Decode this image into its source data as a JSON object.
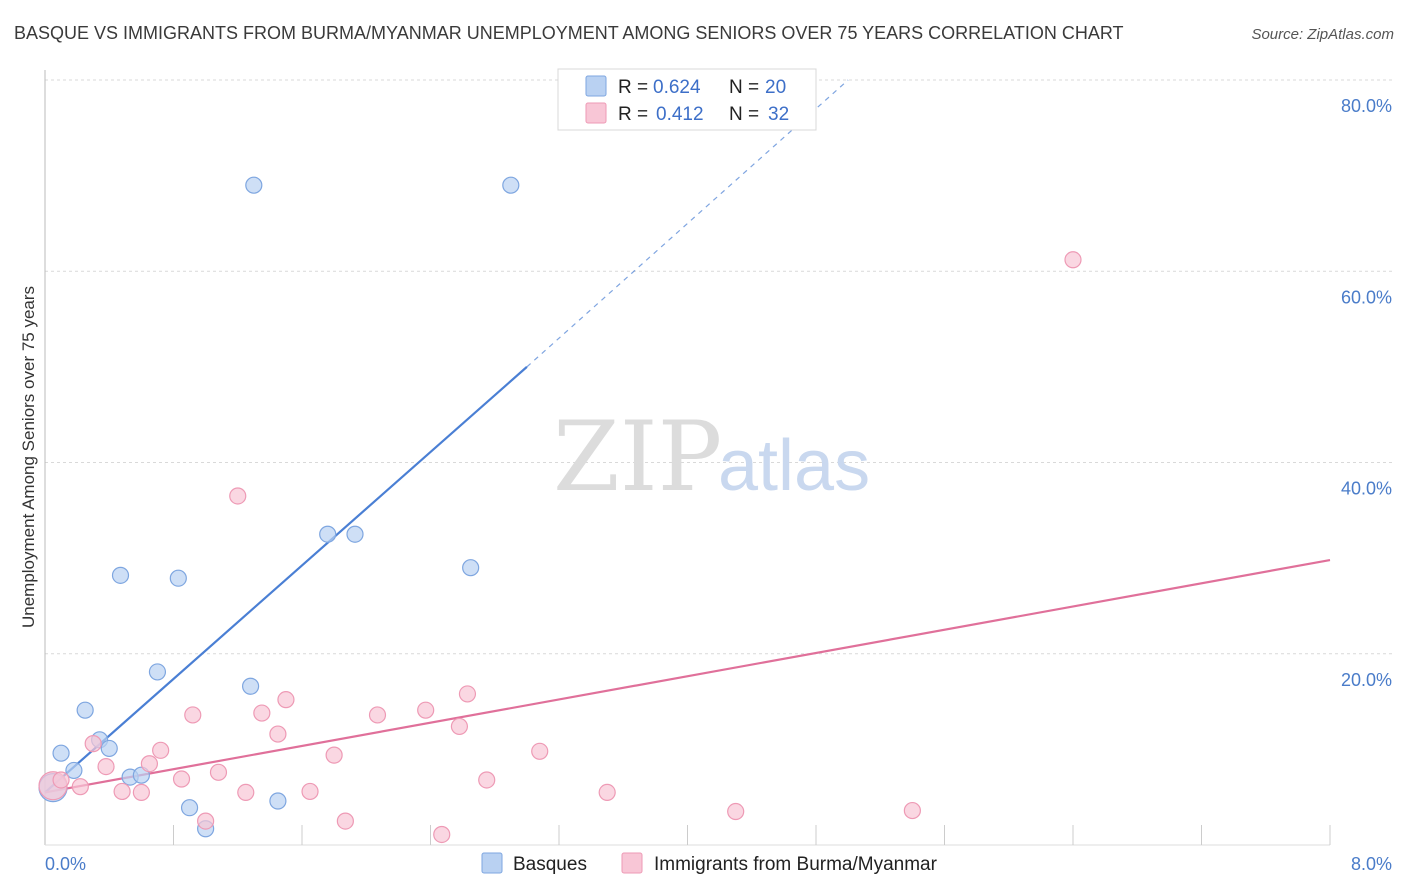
{
  "title": "BASQUE VS IMMIGRANTS FROM BURMA/MYANMAR UNEMPLOYMENT AMONG SENIORS OVER 75 YEARS CORRELATION CHART",
  "source": "Source: ZipAtlas.com",
  "watermark": {
    "zip": "ZIP",
    "atlas": "atlas"
  },
  "legend": {
    "rows": [
      {
        "r_label": "R =",
        "r_value": "0.624",
        "n_label": "N =",
        "n_value": "20",
        "color": "#b9d1f2",
        "stroke": "#7ea6e0"
      },
      {
        "r_label": "R =",
        "r_value": "0.412",
        "n_label": "N =",
        "n_value": "32",
        "color": "#f8c6d6",
        "stroke": "#ee9ab5"
      }
    ]
  },
  "bottom_legend": [
    {
      "label": "Basques",
      "color": "#b9d1f2",
      "stroke": "#7ea6e0"
    },
    {
      "label": "Immigrants from Burma/Myanmar",
      "color": "#f8c6d6",
      "stroke": "#ee9ab5"
    }
  ],
  "chart_data": {
    "type": "scatter",
    "title": "BASQUE VS IMMIGRANTS FROM BURMA/MYANMAR UNEMPLOYMENT AMONG SENIORS OVER 75 YEARS CORRELATION CHART",
    "xlabel": "",
    "ylabel": "Unemployment Among Seniors over 75 years",
    "xlim": [
      0,
      8
    ],
    "ylim": [
      0,
      80
    ],
    "x_ticks": [
      "0.0%",
      "8.0%"
    ],
    "y_ticks": [
      "20.0%",
      "40.0%",
      "60.0%",
      "80.0%"
    ],
    "y_tick_values": [
      20,
      40,
      60,
      80
    ],
    "grid": true,
    "legend_position": "top-center",
    "series": [
      {
        "name": "Basques",
        "color": "#4a7fd4",
        "fill": "#b9d1f2",
        "stroke": "#7ea6e0",
        "points": [
          [
            0.05,
            6.0
          ],
          [
            0.1,
            9.6
          ],
          [
            0.18,
            7.8
          ],
          [
            0.25,
            14.1
          ],
          [
            0.34,
            11.0
          ],
          [
            0.4,
            10.1
          ],
          [
            0.47,
            28.2
          ],
          [
            0.53,
            7.1
          ],
          [
            0.6,
            7.3
          ],
          [
            0.7,
            18.1
          ],
          [
            0.83,
            27.9
          ],
          [
            0.9,
            3.9
          ],
          [
            1.0,
            1.7
          ],
          [
            1.3,
            69.0
          ],
          [
            1.28,
            16.6
          ],
          [
            1.45,
            4.6
          ],
          [
            1.76,
            32.5
          ],
          [
            1.93,
            32.5
          ],
          [
            2.65,
            29.0
          ],
          [
            2.9,
            69.0
          ]
        ],
        "trend": {
          "x0": 0.0,
          "y0": 5.5,
          "x1": 3.0,
          "y1": 50.0,
          "dash_x1": 5.0,
          "dash_y1": 80.0
        }
      },
      {
        "name": "Immigrants from Burma/Myanmar",
        "color": "#e0709a",
        "fill": "#f8c6d6",
        "stroke": "#ee9ab5",
        "points": [
          [
            0.05,
            6.2
          ],
          [
            0.1,
            6.8
          ],
          [
            0.22,
            6.1
          ],
          [
            0.3,
            10.6
          ],
          [
            0.38,
            8.2
          ],
          [
            0.48,
            5.6
          ],
          [
            0.6,
            5.5
          ],
          [
            0.65,
            8.5
          ],
          [
            0.72,
            9.9
          ],
          [
            0.85,
            6.9
          ],
          [
            0.92,
            13.6
          ],
          [
            1.0,
            2.5
          ],
          [
            1.08,
            7.6
          ],
          [
            1.2,
            36.5
          ],
          [
            1.25,
            5.5
          ],
          [
            1.35,
            13.8
          ],
          [
            1.45,
            11.6
          ],
          [
            1.5,
            15.2
          ],
          [
            1.65,
            5.6
          ],
          [
            1.8,
            9.4
          ],
          [
            1.87,
            2.5
          ],
          [
            2.07,
            13.6
          ],
          [
            2.37,
            14.1
          ],
          [
            2.47,
            1.1
          ],
          [
            2.58,
            12.4
          ],
          [
            2.63,
            15.8
          ],
          [
            2.75,
            6.8
          ],
          [
            3.08,
            9.8
          ],
          [
            3.5,
            5.5
          ],
          [
            4.3,
            3.5
          ],
          [
            5.4,
            3.6
          ],
          [
            6.4,
            61.2
          ]
        ],
        "trend": {
          "x0": 0.0,
          "y0": 5.5,
          "x1": 8.0,
          "y1": 29.8
        }
      }
    ]
  }
}
